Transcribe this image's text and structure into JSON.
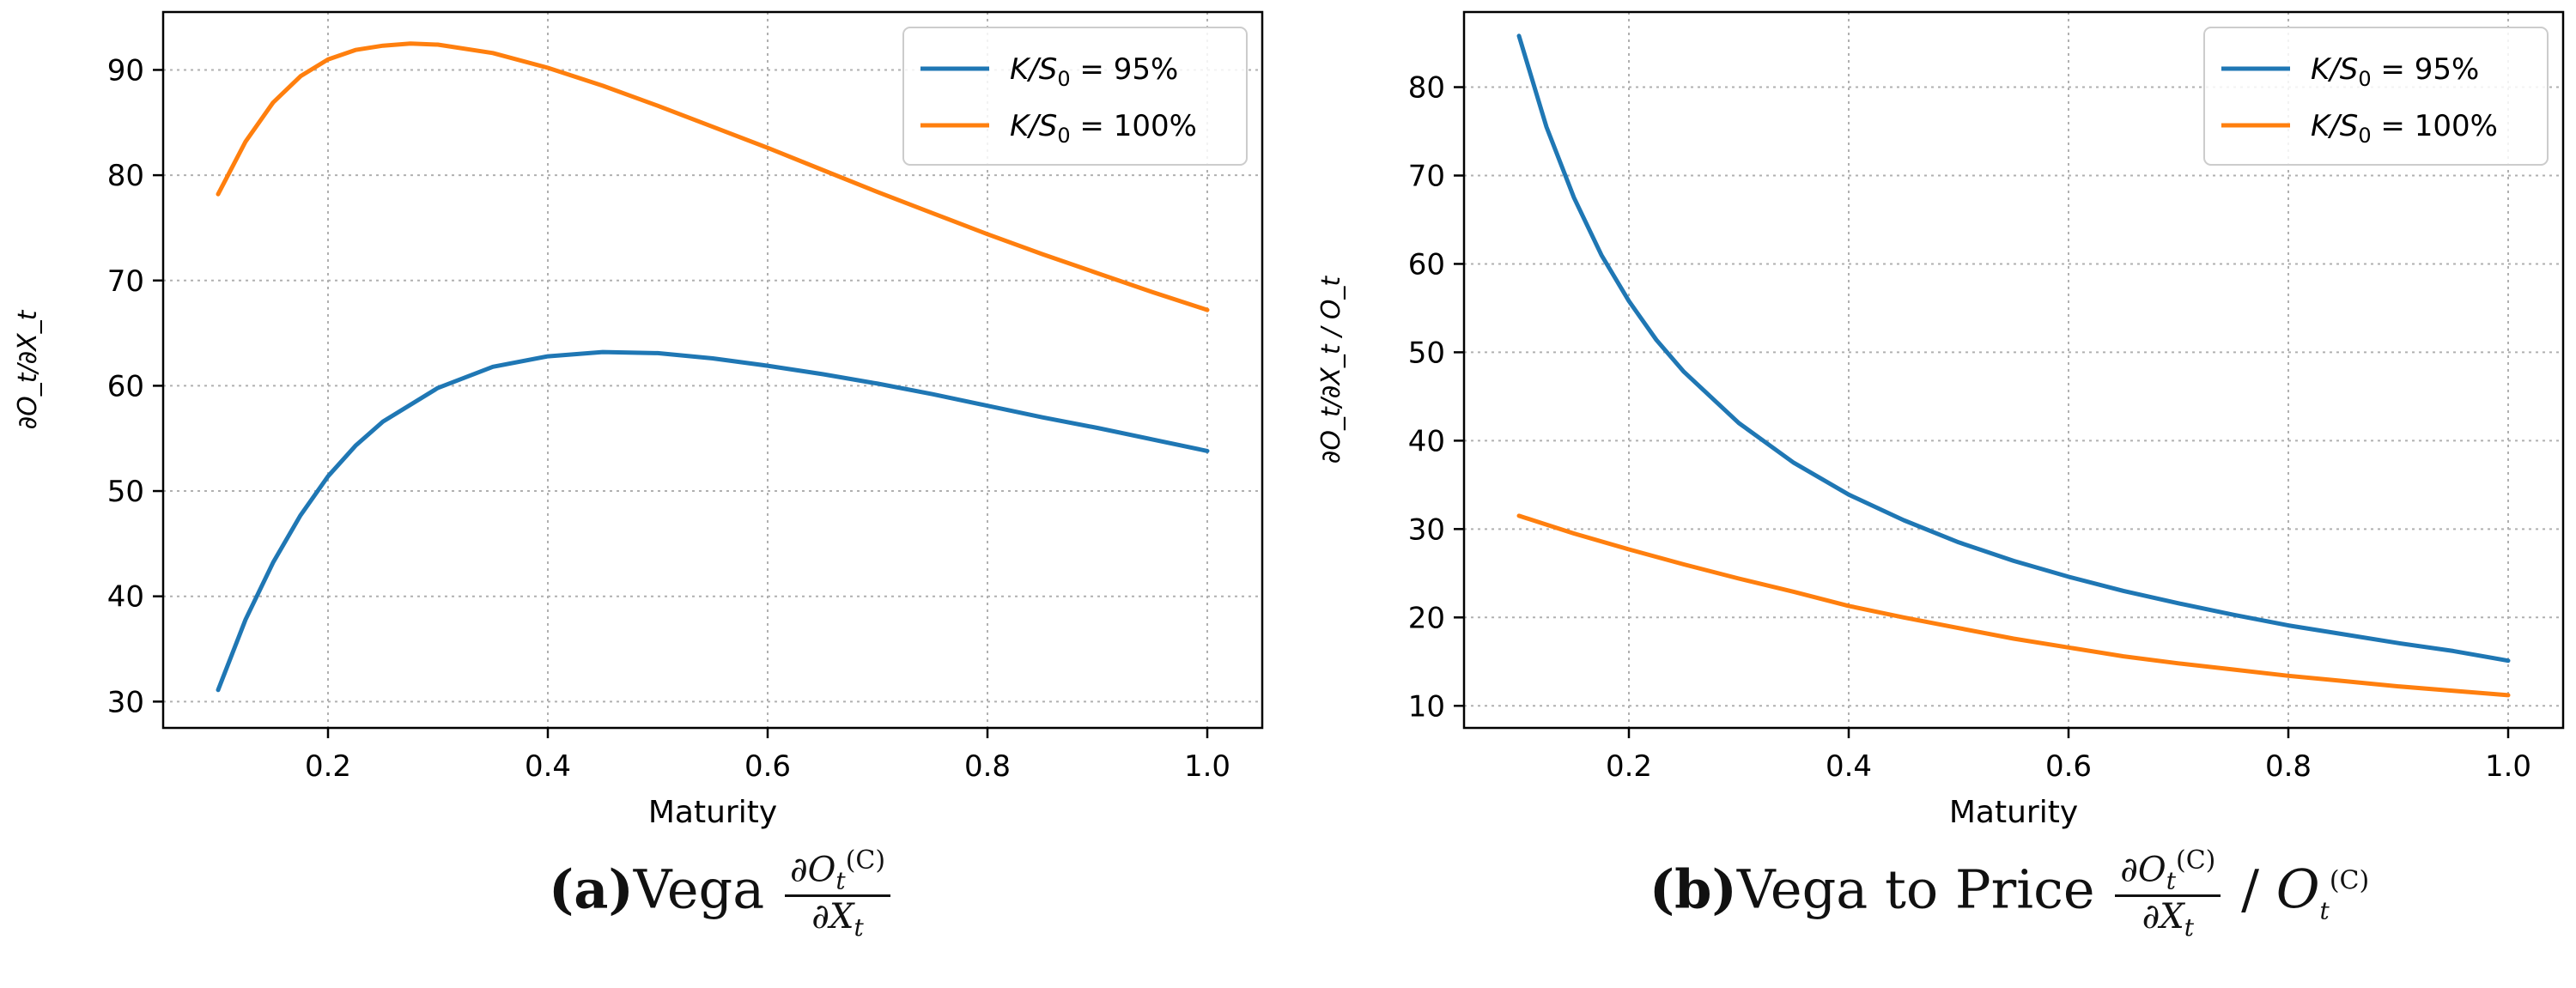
{
  "chart_data": [
    {
      "type": "line",
      "xlabel": "Maturity",
      "ylabel": "∂O_t/∂X_t",
      "xlim": [
        0.05,
        1.05
      ],
      "ylim": [
        27.5,
        95.5
      ],
      "xticks": [
        0.2,
        0.4,
        0.6,
        0.8,
        1.0
      ],
      "xtick_labels": [
        "0.2",
        "0.4",
        "0.6",
        "0.8",
        "1.0"
      ],
      "yticks": [
        30,
        40,
        50,
        60,
        70,
        80,
        90
      ],
      "ytick_labels": [
        "30",
        "40",
        "50",
        "60",
        "70",
        "80",
        "90"
      ],
      "grid": true,
      "legend": "upper-right",
      "series": [
        {
          "name": "K/S_0 = 95%",
          "color": "#1f77b4",
          "x": [
            0.1,
            0.125,
            0.15,
            0.175,
            0.2,
            0.225,
            0.25,
            0.3,
            0.35,
            0.4,
            0.45,
            0.5,
            0.55,
            0.6,
            0.65,
            0.7,
            0.75,
            0.8,
            0.85,
            0.9,
            0.95,
            1.0
          ],
          "values": [
            31.1,
            37.8,
            43.2,
            47.7,
            51.4,
            54.3,
            56.6,
            59.8,
            61.8,
            62.8,
            63.2,
            63.1,
            62.6,
            61.9,
            61.1,
            60.2,
            59.2,
            58.1,
            57.0,
            56.0,
            54.9,
            53.8
          ]
        },
        {
          "name": "K/S_0 = 100%",
          "color": "#ff7f0e",
          "x": [
            0.1,
            0.125,
            0.15,
            0.175,
            0.2,
            0.225,
            0.25,
            0.275,
            0.3,
            0.35,
            0.4,
            0.45,
            0.5,
            0.55,
            0.6,
            0.65,
            0.7,
            0.75,
            0.8,
            0.85,
            0.9,
            0.95,
            1.0
          ],
          "values": [
            78.2,
            83.2,
            86.9,
            89.4,
            91.0,
            91.9,
            92.3,
            92.5,
            92.4,
            91.6,
            90.2,
            88.5,
            86.6,
            84.6,
            82.6,
            80.5,
            78.4,
            76.4,
            74.4,
            72.5,
            70.7,
            68.9,
            67.2
          ]
        }
      ]
    },
    {
      "type": "line",
      "xlabel": "Maturity",
      "ylabel": "∂O_t/∂X_t / O_t",
      "xlim": [
        0.05,
        1.05
      ],
      "ylim": [
        7.5,
        88.5
      ],
      "xticks": [
        0.2,
        0.4,
        0.6,
        0.8,
        1.0
      ],
      "xtick_labels": [
        "0.2",
        "0.4",
        "0.6",
        "0.8",
        "1.0"
      ],
      "yticks": [
        10,
        20,
        30,
        40,
        50,
        60,
        70,
        80
      ],
      "ytick_labels": [
        "10",
        "20",
        "30",
        "40",
        "50",
        "60",
        "70",
        "80"
      ],
      "grid": true,
      "legend": "upper-right",
      "series": [
        {
          "name": "K/S_0 = 95%",
          "color": "#1f77b4",
          "x": [
            0.1,
            0.125,
            0.15,
            0.175,
            0.2,
            0.225,
            0.25,
            0.3,
            0.35,
            0.4,
            0.45,
            0.5,
            0.55,
            0.6,
            0.65,
            0.7,
            0.75,
            0.8,
            0.85,
            0.9,
            0.95,
            1.0
          ],
          "values": [
            85.8,
            75.5,
            67.5,
            61.0,
            55.8,
            51.4,
            47.8,
            42.0,
            37.5,
            33.9,
            31.0,
            28.5,
            26.4,
            24.6,
            23.0,
            21.6,
            20.3,
            19.1,
            18.1,
            17.1,
            16.2,
            15.1
          ]
        },
        {
          "name": "K/S_0 = 100%",
          "color": "#ff7f0e",
          "x": [
            0.1,
            0.15,
            0.2,
            0.25,
            0.3,
            0.35,
            0.4,
            0.45,
            0.5,
            0.55,
            0.6,
            0.65,
            0.7,
            0.75,
            0.8,
            0.85,
            0.9,
            0.95,
            1.0
          ],
          "values": [
            31.5,
            29.5,
            27.7,
            26.0,
            24.4,
            22.9,
            21.3,
            20.0,
            18.8,
            17.6,
            16.6,
            15.6,
            14.8,
            14.1,
            13.4,
            12.8,
            12.2,
            11.7,
            11.2
          ]
        }
      ]
    }
  ],
  "captions": [
    {
      "tag": "(a)",
      "text": "Vega",
      "num": "∂O",
      "num_sub": "t",
      "num_sup": "(C)",
      "den": "∂X",
      "den_sub": "t"
    },
    {
      "tag": "(b)",
      "text": "Vega to Price",
      "num": "∂O",
      "num_sub": "t",
      "num_sup": "(C)",
      "den": "∂X",
      "den_sub": "t",
      "div": "/",
      "tail": "O",
      "tail_sub": "t",
      "tail_sup": "(C)"
    }
  ]
}
